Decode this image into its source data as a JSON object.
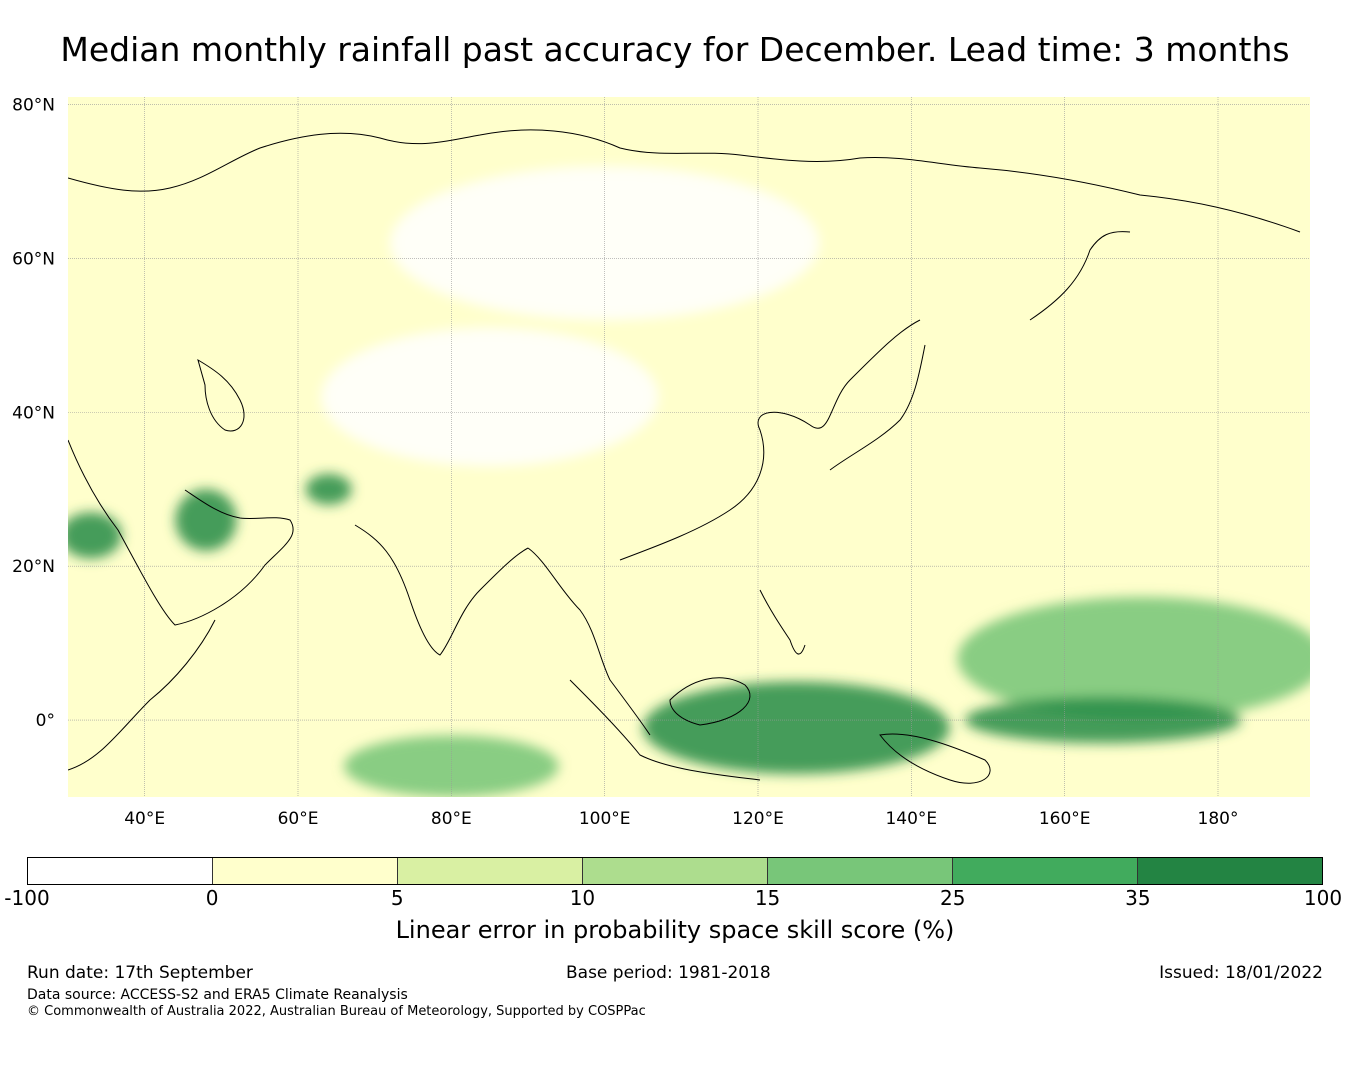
{
  "title": "Median monthly rainfall past accuracy for December. Lead time: 3 months",
  "map": {
    "extent_lon": [
      30,
      192
    ],
    "extent_lat": [
      -10,
      81
    ],
    "lat_labels": [
      "80°N",
      "60°N",
      "40°N",
      "20°N",
      "0°"
    ],
    "lon_labels": [
      "40°E",
      "60°E",
      "80°E",
      "100°E",
      "120°E",
      "140°E",
      "160°E",
      "180°"
    ],
    "base_color": "#ffffcc",
    "skill_regions": [
      {
        "name": "siberia-neutral",
        "lon": 100,
        "lat": 62,
        "rx": 28,
        "ry": 10,
        "class_color": "#ffffff"
      },
      {
        "name": "central-asia-neutral",
        "lon": 85,
        "lat": 42,
        "rx": 22,
        "ry": 9,
        "class_color": "#ffffff"
      },
      {
        "name": "arabia-high",
        "lon": 48,
        "lat": 26,
        "rx": 4,
        "ry": 4,
        "class_color": "#238b45"
      },
      {
        "name": "iran-high",
        "lon": 64,
        "lat": 30,
        "rx": 3,
        "ry": 2,
        "class_color": "#238b45"
      },
      {
        "name": "red-sea-high",
        "lon": 33,
        "lat": 24,
        "rx": 4,
        "ry": 3,
        "class_color": "#238b45"
      },
      {
        "name": "indian-ocean-moderate",
        "lon": 80,
        "lat": -6,
        "rx": 14,
        "ry": 4,
        "class_color": "#74c476"
      },
      {
        "name": "maritime-continent-high",
        "lon": 125,
        "lat": -1,
        "rx": 20,
        "ry": 6,
        "class_color": "#238b45"
      },
      {
        "name": "pacific-moderate",
        "lon": 170,
        "lat": 8,
        "rx": 24,
        "ry": 8,
        "class_color": "#74c476"
      },
      {
        "name": "equatorial-pacific-high",
        "lon": 165,
        "lat": 0,
        "rx": 18,
        "ry": 3,
        "class_color": "#238b45"
      }
    ]
  },
  "colorbar": {
    "ticks": [
      "-100",
      "0",
      "5",
      "10",
      "15",
      "25",
      "35",
      "100"
    ],
    "colors": [
      "#ffffff",
      "#ffffcc",
      "#d9f0a3",
      "#addd8e",
      "#78c679",
      "#41ab5d",
      "#238443"
    ],
    "label": "Linear error in probability space skill score (%)"
  },
  "footer": {
    "run_date": "Run date: 17th September",
    "base_period": "Base period: 1981-2018",
    "issued": "Issued: 18/01/2022",
    "data_source": "Data source: ACCESS-S2 and ERA5 Climate Reanalysis",
    "copyright": "© Commonwealth of Australia 2022, Australian Bureau of Meteorology, Supported by COSPPac"
  }
}
